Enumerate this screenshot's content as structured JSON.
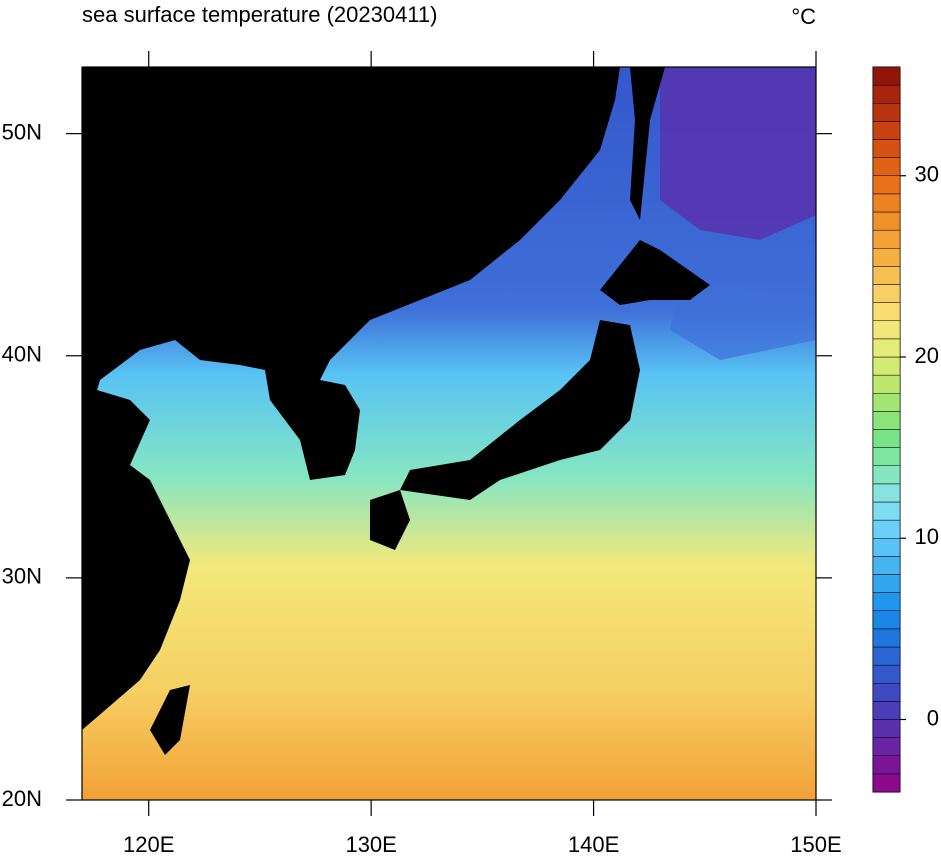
{
  "chart_data": {
    "type": "map",
    "title": "sea surface temperature (20230411)",
    "unit": "°C",
    "xlim": [
      117,
      150
    ],
    "ylim": [
      20,
      53
    ],
    "xticks": [
      {
        "value": 120,
        "label": "120E"
      },
      {
        "value": 130,
        "label": "130E"
      },
      {
        "value": 140,
        "label": "140E"
      },
      {
        "value": 150,
        "label": "150E"
      }
    ],
    "yticks": [
      {
        "value": 20,
        "label": "20N"
      },
      {
        "value": 30,
        "label": "30N"
      },
      {
        "value": 40,
        "label": "40N"
      },
      {
        "value": 50,
        "label": "50N"
      }
    ],
    "colorbar": {
      "lim": [
        -4,
        36
      ],
      "ticks": [
        0,
        10,
        20,
        30
      ],
      "colors": [
        "#8b0a8c",
        "#7a1597",
        "#6a23a3",
        "#5a30ad",
        "#4b3db8",
        "#3f4ac2",
        "#3557cc",
        "#2b66d5",
        "#2176de",
        "#1a86e6",
        "#2196ec",
        "#33a6f0",
        "#45b5f2",
        "#58c3f4",
        "#6ad0f5",
        "#7ddbf2",
        "#88e2e0",
        "#86e6c2",
        "#7de6a0",
        "#78e387",
        "#8ae47a",
        "#a3e672",
        "#bde86e",
        "#d2eb70",
        "#e3ec76",
        "#f2e87a",
        "#f7dd72",
        "#f8cf62",
        "#f7c052",
        "#f5b043",
        "#f2a136",
        "#ef922a",
        "#ec8220",
        "#e8721a",
        "#e06216",
        "#d55213",
        "#c84211",
        "#b8330f",
        "#a7250d",
        "#921509"
      ]
    }
  }
}
